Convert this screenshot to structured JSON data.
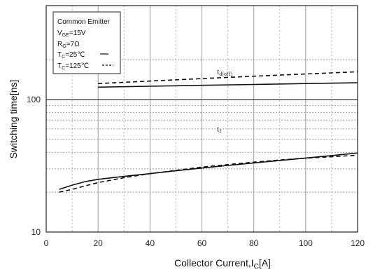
{
  "chart_data": {
    "type": "line",
    "xlabel": "Collector Current,I",
    "xlabel_sub": "C",
    "xlabel_unit": "[A]",
    "ylabel": "Switching time[ns]",
    "xlim": [
      0,
      120
    ],
    "ylim": [
      10,
      200
    ],
    "yscale": "log",
    "x_ticks": [
      "0",
      "20",
      "40",
      "60",
      "80",
      "100",
      "120"
    ],
    "y_ticks": [
      "10",
      "100"
    ],
    "grid": true,
    "legend": {
      "placement": "top-left",
      "title": "Common Emitter",
      "lines": [
        {
          "main": "V",
          "sub": "GE",
          "rest": "=15V"
        },
        {
          "main": "R",
          "sub": "G",
          "rest": "=7Ω"
        },
        {
          "main": "T",
          "sub": "C",
          "rest": "=25℃",
          "key": "—"
        },
        {
          "main": "T",
          "sub": "C",
          "rest": "=125℃",
          "key": "----"
        }
      ]
    },
    "annotations": [
      {
        "main": "t",
        "sub": "d(off)"
      },
      {
        "main": "t",
        "sub": "f"
      }
    ],
    "series": [
      {
        "group": "td(off)",
        "temp": "25",
        "style": "solid",
        "x": [
          20,
          40,
          60,
          80,
          100,
          120
        ],
        "y": [
          124,
          126,
          128,
          130,
          132,
          134
        ]
      },
      {
        "group": "td(off)",
        "temp": "125",
        "style": "dashed",
        "x": [
          20,
          40,
          60,
          80,
          100,
          120
        ],
        "y": [
          132,
          138,
          144,
          150,
          156,
          162
        ]
      },
      {
        "group": "tf",
        "temp": "25",
        "style": "solid",
        "x": [
          5,
          10,
          15,
          20,
          30,
          40,
          50,
          60,
          70,
          80,
          90,
          100,
          110,
          120
        ],
        "y": [
          21,
          22.6,
          24,
          25,
          26.3,
          27.6,
          29,
          30.4,
          31.8,
          33.2,
          34.7,
          36.2,
          37.8,
          39.5
        ]
      },
      {
        "group": "tf",
        "temp": "125",
        "style": "dashed",
        "x": [
          5,
          10,
          15,
          20,
          30,
          40,
          50,
          60,
          70,
          80,
          90,
          100,
          110,
          120
        ],
        "y": [
          20,
          21,
          22.3,
          23.6,
          25.7,
          27.6,
          29.2,
          30.9,
          32.3,
          33.7,
          35,
          36.1,
          37,
          38
        ]
      }
    ]
  }
}
